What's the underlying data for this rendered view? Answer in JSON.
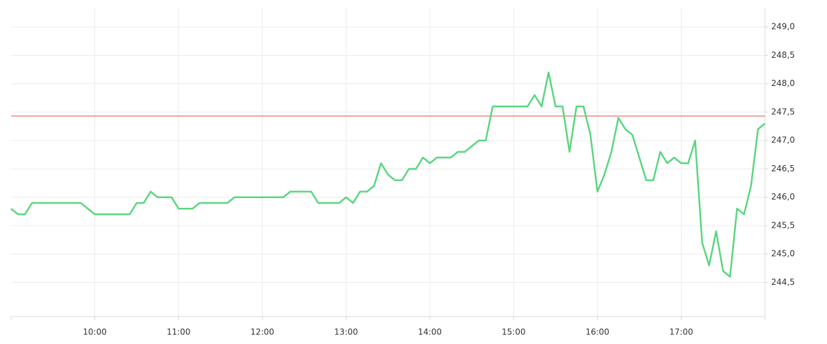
{
  "chart_data": {
    "type": "line",
    "x": [
      "09:00",
      "09:05",
      "09:10",
      "09:15",
      "09:50",
      "10:00",
      "10:25",
      "10:30",
      "10:35",
      "10:40",
      "10:45",
      "10:55",
      "11:00",
      "11:10",
      "11:15",
      "11:35",
      "11:40",
      "12:15",
      "12:20",
      "12:35",
      "12:40",
      "12:55",
      "13:00",
      "13:05",
      "13:10",
      "13:15",
      "13:20",
      "13:25",
      "13:30",
      "13:35",
      "13:40",
      "13:45",
      "13:50",
      "13:55",
      "14:00",
      "14:05",
      "14:15",
      "14:20",
      "14:25",
      "14:30",
      "14:35",
      "14:40",
      "14:45",
      "15:10",
      "15:15",
      "15:20",
      "15:25",
      "15:30",
      "15:35",
      "15:40",
      "15:45",
      "15:50",
      "15:55",
      "16:00",
      "16:05",
      "16:10",
      "16:15",
      "16:20",
      "16:25",
      "16:35",
      "16:40",
      "16:45",
      "16:50",
      "16:55",
      "17:00",
      "17:05",
      "17:10",
      "17:15",
      "17:20",
      "17:25",
      "17:30",
      "17:35",
      "17:40",
      "17:45",
      "17:50",
      "17:55",
      "18:00"
    ],
    "series": [
      {
        "color": "#5ad67e",
        "values": [
          245.8,
          245.7,
          245.7,
          245.9,
          245.9,
          245.7,
          245.7,
          245.9,
          245.9,
          246.1,
          246.0,
          246.0,
          245.8,
          245.8,
          245.9,
          245.9,
          246.0,
          246.0,
          246.1,
          246.1,
          245.9,
          245.9,
          246.0,
          245.9,
          246.1,
          246.1,
          246.2,
          246.6,
          246.4,
          246.3,
          246.3,
          246.5,
          246.5,
          246.7,
          246.6,
          246.7,
          246.7,
          246.8,
          246.8,
          246.9,
          247.0,
          247.0,
          247.6,
          247.6,
          247.8,
          247.6,
          248.2,
          247.6,
          247.6,
          246.8,
          247.6,
          247.6,
          247.1,
          246.1,
          246.4,
          246.8,
          247.4,
          247.2,
          247.1,
          246.3,
          246.3,
          246.8,
          246.6,
          246.7,
          246.6,
          246.6,
          247.0,
          245.2,
          244.8,
          245.4,
          244.7,
          244.6,
          245.8,
          245.7,
          246.2,
          247.2,
          247.3
        ]
      }
    ],
    "xlim": [
      "09:00",
      "18:00"
    ],
    "xticks": [
      "10:00",
      "11:00",
      "12:00",
      "13:00",
      "14:00",
      "15:00",
      "16:00",
      "17:00"
    ],
    "ylim": [
      243.9,
      249.33
    ],
    "yticks": [
      {
        "value": 244.5,
        "label": "244,5"
      },
      {
        "value": 245.0,
        "label": "245,0"
      },
      {
        "value": 245.5,
        "label": "245,5"
      },
      {
        "value": 246.0,
        "label": "246,0"
      },
      {
        "value": 246.5,
        "label": "246,5"
      },
      {
        "value": 247.0,
        "label": "247,0"
      },
      {
        "value": 247.5,
        "label": "247,5"
      },
      {
        "value": 248.0,
        "label": "248,0"
      },
      {
        "value": 248.5,
        "label": "248,5"
      },
      {
        "value": 249.0,
        "label": "249,0"
      }
    ],
    "reference_line": {
      "value": 247.43,
      "color": "#d9534f"
    },
    "grid": true
  }
}
